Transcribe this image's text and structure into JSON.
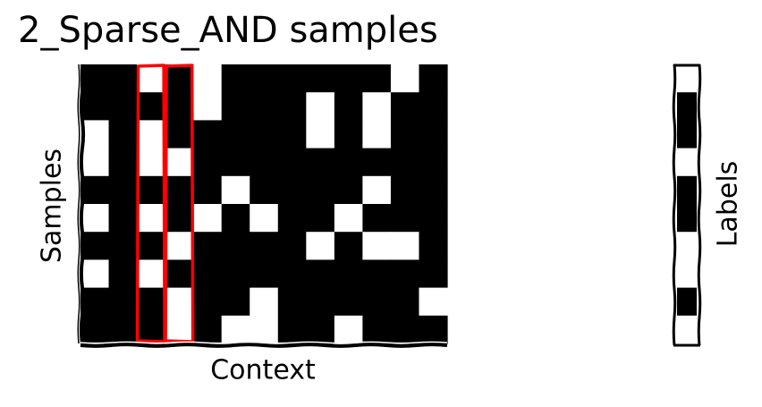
{
  "chart_data": {
    "type": "heatmap",
    "title": "2_Sparse_AND samples",
    "xlabel": "Context",
    "ylabel": "Samples",
    "matrix_rows": [
      [
        1,
        1,
        0,
        1,
        0,
        1,
        1,
        1,
        1,
        1,
        1,
        0,
        1
      ],
      [
        1,
        1,
        1,
        1,
        0,
        1,
        1,
        1,
        0,
        1,
        0,
        1,
        1
      ],
      [
        0,
        1,
        0,
        1,
        1,
        1,
        1,
        1,
        0,
        1,
        0,
        1,
        1
      ],
      [
        0,
        1,
        0,
        0,
        1,
        1,
        1,
        1,
        1,
        1,
        1,
        1,
        1
      ],
      [
        1,
        1,
        1,
        1,
        1,
        0,
        1,
        1,
        1,
        1,
        0,
        1,
        1
      ],
      [
        0,
        1,
        0,
        1,
        0,
        1,
        0,
        1,
        1,
        0,
        1,
        1,
        1
      ],
      [
        1,
        1,
        1,
        0,
        1,
        1,
        1,
        1,
        0,
        1,
        0,
        0,
        1
      ],
      [
        0,
        1,
        0,
        1,
        1,
        1,
        1,
        1,
        1,
        1,
        1,
        1,
        1
      ],
      [
        1,
        1,
        1,
        0,
        1,
        1,
        0,
        1,
        1,
        1,
        1,
        1,
        0
      ],
      [
        1,
        1,
        1,
        0,
        1,
        0,
        0,
        1,
        1,
        0,
        1,
        1,
        1
      ]
    ],
    "highlighted_columns": [
      2,
      3
    ],
    "labels_title": "Labels",
    "labels": [
      0,
      1,
      1,
      0,
      1,
      1,
      0,
      0,
      1,
      0
    ],
    "grid": false,
    "colors": {
      "on": "#000000",
      "off": "#ffffff",
      "highlight": "#ff0000"
    }
  }
}
